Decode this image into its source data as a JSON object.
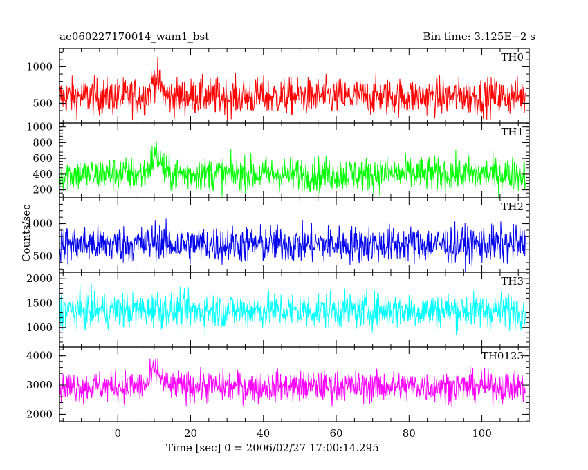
{
  "header": {
    "title": "ae060227170014_wam1_bst",
    "bin_time": "Bin time: 3.125E−2 s"
  },
  "axes": {
    "xlabel": "Time [sec] 0 = 2006/02/27 17:00:14.295",
    "ylabel": "Counts/sec"
  },
  "chart_data": {
    "type": "line",
    "x_range": [
      -16,
      113
    ],
    "x_ticks": [
      0,
      20,
      40,
      60,
      80,
      100
    ],
    "x_tick_labels": [
      "0",
      "20",
      "40",
      "60",
      "80",
      "100"
    ],
    "grid": false,
    "panels": [
      {
        "name": "TH0",
        "color": "#ff0000",
        "ylim": [
          230,
          1250
        ],
        "yticks": [
          500,
          1000
        ],
        "ytick_labels": [
          "500",
          "1000"
        ],
        "baseline": 590,
        "spread": 230,
        "burst": 250
      },
      {
        "name": "TH1",
        "color": "#00ff00",
        "ylim": [
          100,
          1050
        ],
        "yticks": [
          200,
          400,
          600,
          800,
          1000
        ],
        "ytick_labels": [
          "200",
          "400",
          "600",
          "800",
          "1000"
        ],
        "baseline": 400,
        "spread": 200,
        "burst": 250
      },
      {
        "name": "TH2",
        "color": "#0000ee",
        "ylim": [
          250,
          1400
        ],
        "yticks": [
          500,
          1000
        ],
        "ytick_labels": [
          "500",
          "1000"
        ],
        "baseline": 680,
        "spread": 260,
        "burst": 80
      },
      {
        "name": "TH3",
        "color": "#00ffff",
        "ylim": [
          600,
          2130
        ],
        "yticks": [
          1000,
          1500,
          2000
        ],
        "ytick_labels": [
          "1000",
          "1500",
          "2000"
        ],
        "baseline": 1350,
        "spread": 330,
        "burst": 60
      },
      {
        "name": "TH0123",
        "color": "#ff00ff",
        "ylim": [
          1750,
          4300
        ],
        "yticks": [
          2000,
          3000,
          4000
        ],
        "ytick_labels": [
          "2000",
          "3000",
          "4000"
        ],
        "baseline": 2950,
        "spread": 480,
        "burst": 550
      }
    ]
  }
}
